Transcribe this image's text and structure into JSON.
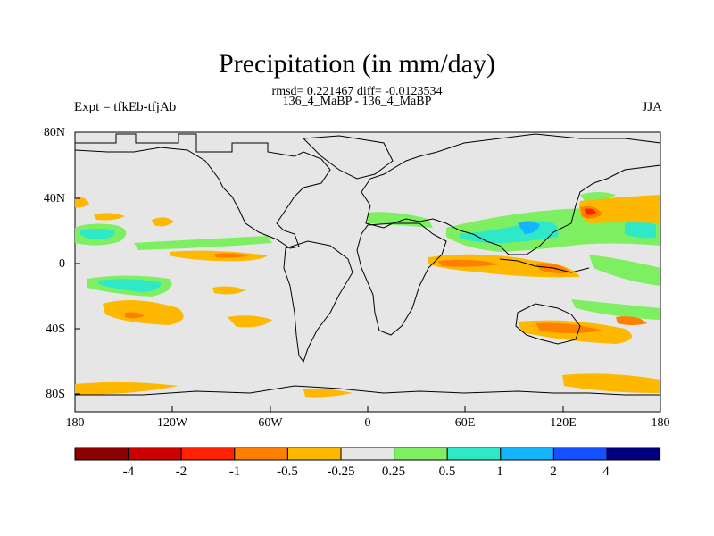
{
  "header": {
    "title": "Precipitation (in mm/day)",
    "stats": "rmsd= 0.221467 diff= -0.0123534",
    "case_label": "136_4_MaBP - 136_4_MaBP",
    "experiment": "Expt = tfkEb-tfjAb",
    "season": "JJA"
  },
  "axes": {
    "lat_labels": [
      "80N",
      "40N",
      "0",
      "40S",
      "80S"
    ],
    "lon_labels": [
      "180",
      "120W",
      "60W",
      "0",
      "60E",
      "120E",
      "180"
    ],
    "lat_values": [
      80,
      40,
      0,
      -40,
      -80
    ],
    "lon_values": [
      -180,
      -120,
      -60,
      0,
      60,
      120,
      180
    ]
  },
  "colorbar": {
    "labels": [
      "-4",
      "-2",
      "-1",
      "-0.5",
      "-0.25",
      "0.25",
      "0.5",
      "1",
      "2",
      "4"
    ],
    "colors": [
      "#8b0000",
      "#cc0000",
      "#ff2200",
      "#ff7f00",
      "#ffb800",
      "#e6e6e6",
      "#7fef62",
      "#2ee8c8",
      "#14b4ff",
      "#1450ff",
      "#000080"
    ]
  },
  "map_background": "#e6e6e6"
}
